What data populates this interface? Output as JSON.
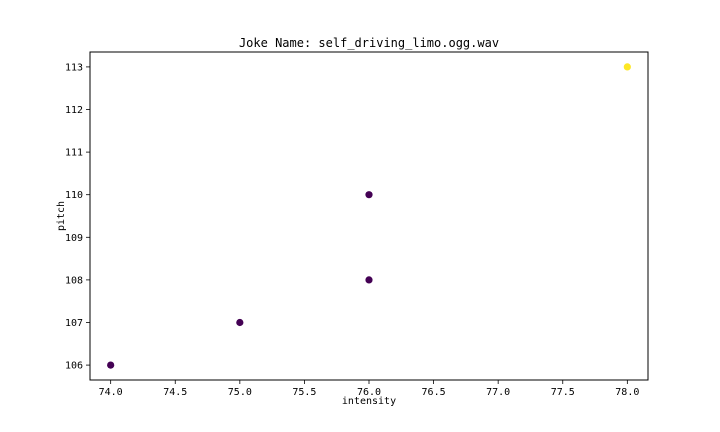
{
  "chart_data": {
    "type": "scatter",
    "title": "Joke Name: self_driving_limo.ogg.wav",
    "xlabel": "intensity",
    "ylabel": "pitch",
    "xlim": [
      73.84,
      78.16
    ],
    "ylim": [
      105.65,
      113.35
    ],
    "x_ticks": [
      74.0,
      74.5,
      75.0,
      75.5,
      76.0,
      76.5,
      77.0,
      77.5,
      78.0
    ],
    "x_tick_labels": [
      "74.0",
      "74.5",
      "75.0",
      "75.5",
      "76.0",
      "76.5",
      "77.0",
      "77.5",
      "78.0"
    ],
    "y_ticks": [
      106,
      107,
      108,
      109,
      110,
      111,
      112,
      113
    ],
    "y_tick_labels": [
      "106",
      "107",
      "108",
      "109",
      "110",
      "111",
      "112",
      "113"
    ],
    "grid": false,
    "points": [
      {
        "x": 74,
        "y": 106,
        "color": "#440154"
      },
      {
        "x": 75,
        "y": 107,
        "color": "#440154"
      },
      {
        "x": 76,
        "y": 108,
        "color": "#440154"
      },
      {
        "x": 76,
        "y": 110,
        "color": "#440154"
      },
      {
        "x": 78,
        "y": 113,
        "color": "#fde725"
      }
    ]
  }
}
